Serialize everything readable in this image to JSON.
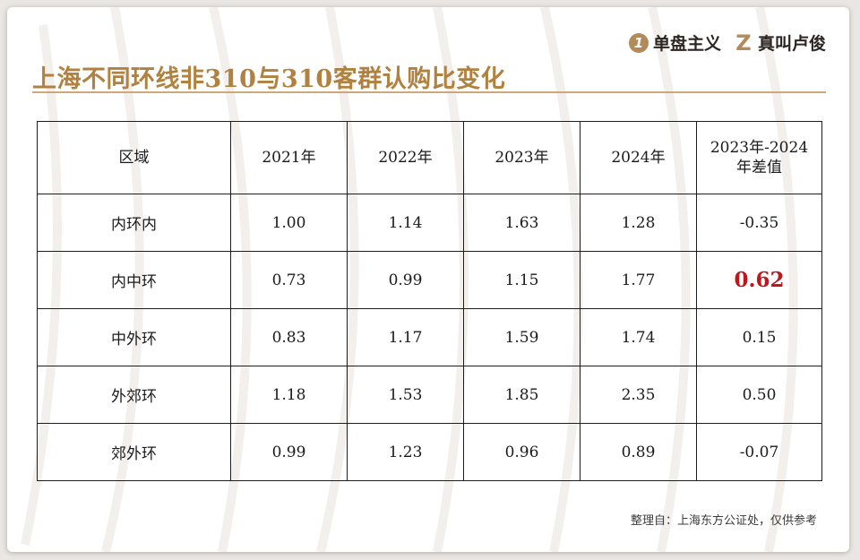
{
  "brand": {
    "left_label": "单盘主义",
    "left_logo_glyph": "1",
    "right_label": "真叫卢俊",
    "right_logo_glyph": "Z",
    "accent_color": "#b38a59"
  },
  "title": "上海不同环线非310与310客群认购比变化",
  "table": {
    "headers": [
      "区域",
      "2021年",
      "2022年",
      "2023年",
      "2024年",
      "2023年-2024年差值"
    ],
    "rows": [
      [
        "内环内",
        "1.00",
        "1.14",
        "1.63",
        "1.28",
        "-0.35"
      ],
      [
        "内中环",
        "0.73",
        "0.99",
        "1.15",
        "1.77",
        "0.62"
      ],
      [
        "中外环",
        "0.83",
        "1.17",
        "1.59",
        "1.74",
        "0.15"
      ],
      [
        "外郊环",
        "1.18",
        "1.53",
        "1.85",
        "2.35",
        "0.50"
      ],
      [
        "郊外环",
        "0.99",
        "1.23",
        "0.96",
        "0.89",
        "-0.07"
      ]
    ],
    "highlight_color": "#c0171b"
  },
  "source": "整理自：上海东方公证处，仅供参考"
}
